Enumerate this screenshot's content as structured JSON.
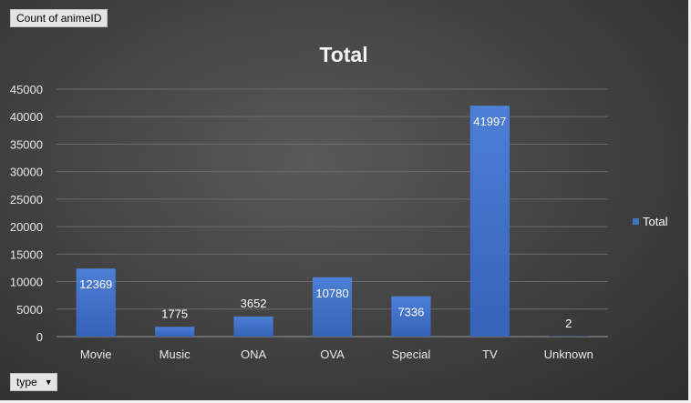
{
  "field_buttons": {
    "value_field": "Count of animeID",
    "axis_field": "type"
  },
  "chart_data": {
    "type": "bar",
    "title": "Total",
    "categories": [
      "Movie",
      "Music",
      "ONA",
      "OVA",
      "Special",
      "TV",
      "Unknown"
    ],
    "series": [
      {
        "name": "Total",
        "values": [
          12369,
          1775,
          3652,
          10780,
          7336,
          41997,
          2
        ],
        "color": "#4472c4"
      }
    ],
    "ylim": [
      0,
      45000
    ],
    "yticks": [
      0,
      5000,
      10000,
      15000,
      20000,
      25000,
      30000,
      35000,
      40000,
      45000
    ],
    "grid": true,
    "legend_position": "right",
    "data_labels": true,
    "background": "#404040"
  }
}
